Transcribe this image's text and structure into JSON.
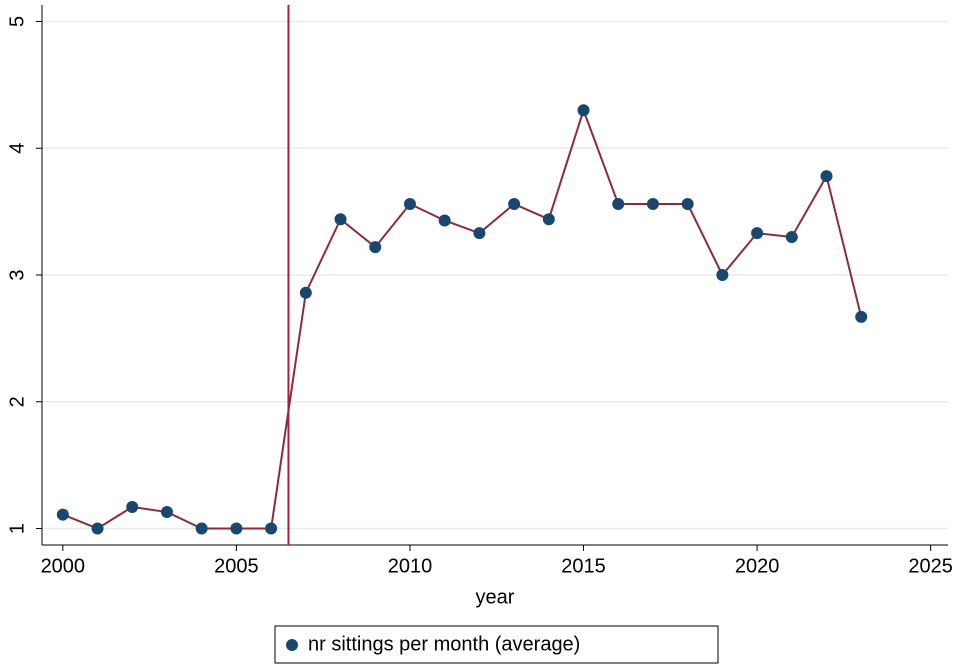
{
  "chart_data": {
    "type": "line",
    "x_label": "year",
    "x": [
      2000,
      2001,
      2002,
      2003,
      2004,
      2005,
      2006,
      2007,
      2008,
      2009,
      2010,
      2011,
      2012,
      2013,
      2014,
      2015,
      2016,
      2017,
      2018,
      2019,
      2020,
      2021,
      2022,
      2023
    ],
    "series": [
      {
        "name": "nr sittings per month (average)",
        "color": "#8b2c3a",
        "marker_color": "#1a476f",
        "values": [
          1.11,
          1.0,
          1.17,
          1.13,
          1.0,
          1.0,
          1.0,
          2.86,
          3.44,
          3.22,
          3.56,
          3.43,
          3.33,
          3.56,
          3.44,
          4.3,
          3.56,
          3.56,
          3.56,
          3.0,
          3.33,
          3.3,
          3.78,
          2.67
        ]
      }
    ],
    "xlim": [
      1999.4,
      2025.5
    ],
    "xticks": [
      2000,
      2005,
      2010,
      2015,
      2020,
      2025
    ],
    "ylim": [
      0.87,
      5.13
    ],
    "yticks": [
      1,
      2,
      3,
      4,
      5
    ],
    "vline": {
      "x": 2006.5,
      "color": "#b01c3c"
    },
    "grid": true,
    "legend": "bottom"
  }
}
